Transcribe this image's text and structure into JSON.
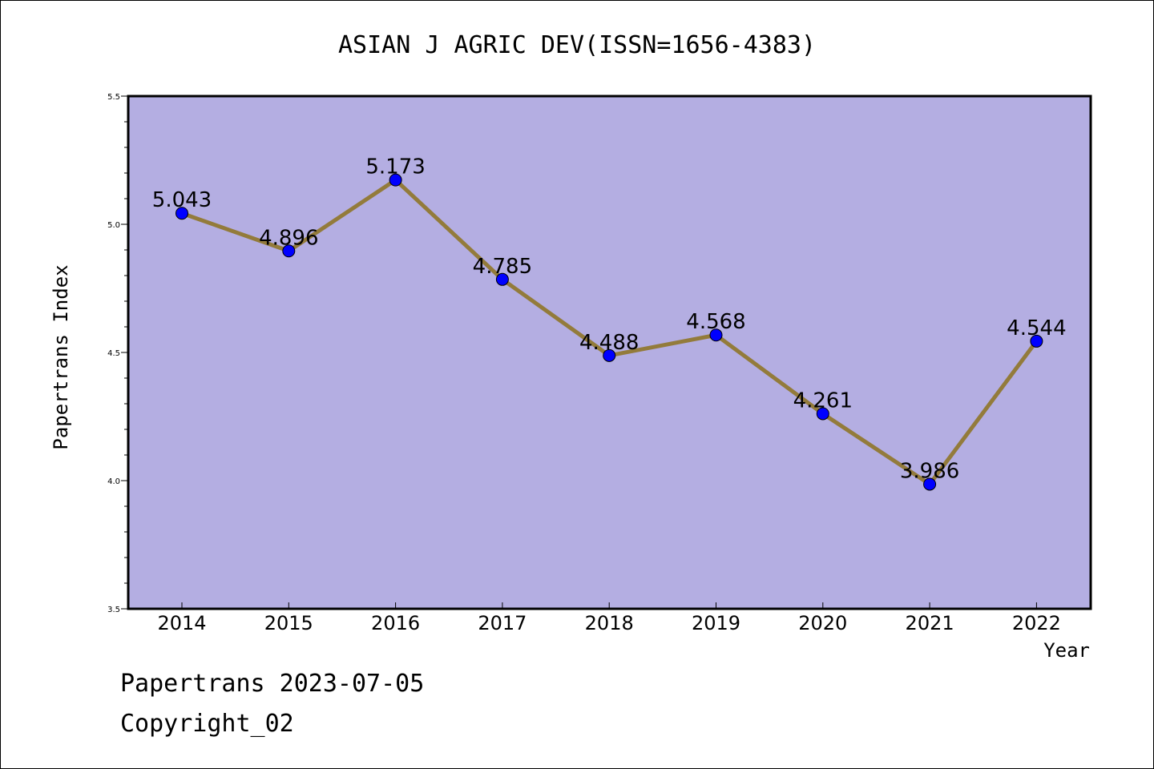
{
  "chart_data": {
    "type": "line",
    "title": "ASIAN J AGRIC DEV(ISSN=1656-4383)",
    "xlabel": "Year",
    "ylabel": "Papertrans Index",
    "categories": [
      "2014",
      "2015",
      "2016",
      "2017",
      "2018",
      "2019",
      "2020",
      "2021",
      "2022"
    ],
    "values": [
      5.043,
      4.896,
      5.173,
      4.785,
      4.488,
      4.568,
      4.261,
      3.986,
      4.544
    ],
    "data_labels": [
      "5.043",
      "4.896",
      "5.173",
      "4.785",
      "4.488",
      "4.568",
      "4.261",
      "3.986",
      "4.544"
    ],
    "ylim": [
      3.5,
      5.5
    ],
    "yticks": [
      "3.5",
      "4.0",
      "4.5",
      "5.0",
      "5.5"
    ],
    "grid": false,
    "colors": {
      "plot_background": "#b4aee2",
      "line": "#937b3b",
      "marker": "#0000ff"
    }
  },
  "footer": {
    "line1": "Papertrans 2023-07-05",
    "line2": "Copyright_02"
  }
}
